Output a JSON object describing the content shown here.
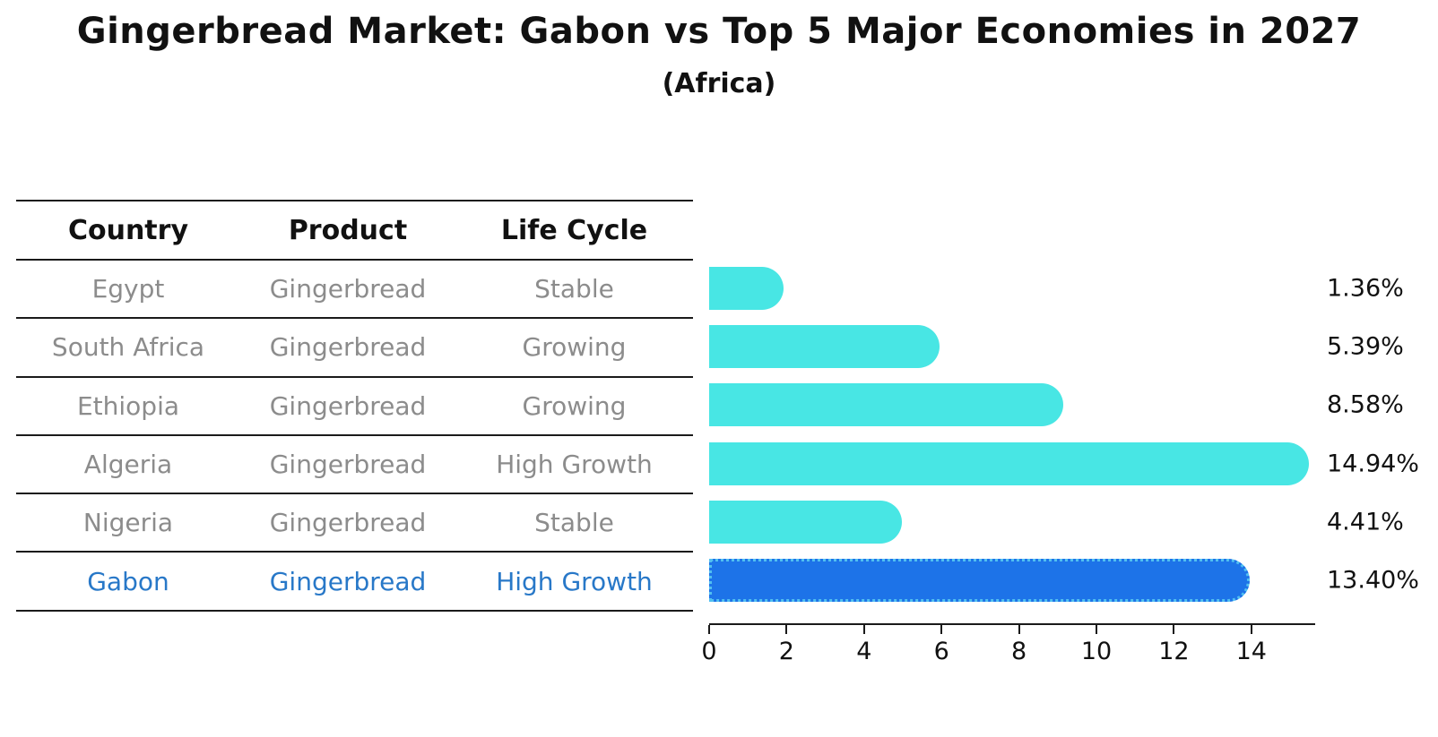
{
  "title": "Gingerbread Market: Gabon vs Top 5 Major Economies in 2027",
  "subtitle": "(Africa)",
  "table": {
    "headers": {
      "country": "Country",
      "product": "Product",
      "life_cycle": "Life Cycle"
    },
    "rows": [
      {
        "country": "Egypt",
        "product": "Gingerbread",
        "life_cycle": "Stable",
        "highlight": false
      },
      {
        "country": "South Africa",
        "product": "Gingerbread",
        "life_cycle": "Growing",
        "highlight": false
      },
      {
        "country": "Ethiopia",
        "product": "Gingerbread",
        "life_cycle": "Growing",
        "highlight": false
      },
      {
        "country": "Algeria",
        "product": "Gingerbread",
        "life_cycle": "High Growth",
        "highlight": false
      },
      {
        "country": "Nigeria",
        "product": "Gingerbread",
        "life_cycle": "Stable",
        "highlight": false
      },
      {
        "country": "Gabon",
        "product": "Gingerbread",
        "life_cycle": "High Growth",
        "highlight": true
      }
    ]
  },
  "chart_data": {
    "type": "bar",
    "orientation": "horizontal",
    "title": "Gingerbread Market: Gabon vs Top 5 Major Economies in 2027",
    "subtitle": "(Africa)",
    "categories": [
      "Egypt",
      "South Africa",
      "Ethiopia",
      "Algeria",
      "Nigeria",
      "Gabon"
    ],
    "values": [
      1.36,
      5.39,
      8.58,
      14.94,
      4.41,
      13.4
    ],
    "value_labels": [
      "1.36%",
      "5.39%",
      "8.58%",
      "14.94%",
      "4.41%",
      "13.40%"
    ],
    "unit": "%",
    "x_ticks": [
      0,
      2,
      4,
      6,
      8,
      10,
      12,
      14
    ],
    "xlim": [
      0,
      15.65
    ],
    "grid": false,
    "legend": false,
    "highlight_index": 5,
    "bar_color": "#48e6e4",
    "highlight_bar_color": "#1d73e8",
    "highlight_border_color": "#52c0f0",
    "highlight_text_color": "#2878c8"
  }
}
